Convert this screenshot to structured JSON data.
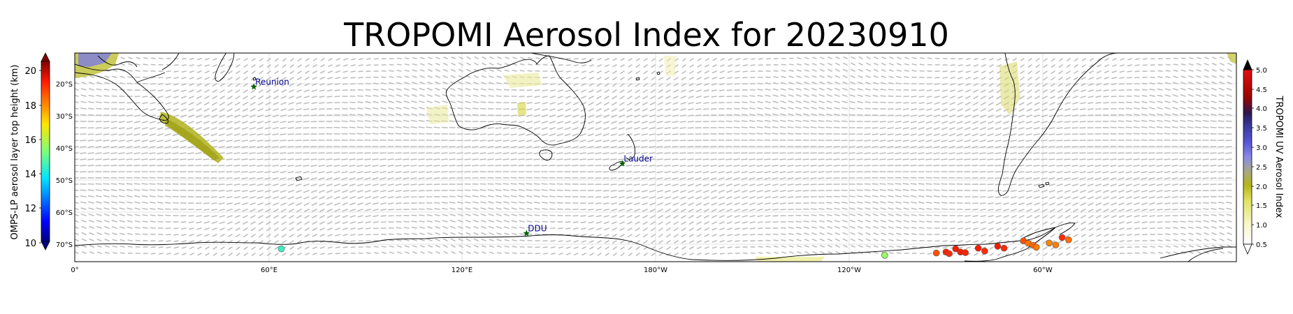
{
  "title": "TROPOMI Aerosol Index for 20230910",
  "left_colorbar": {
    "label": "OMPS-LP aerosol layer top height (km)",
    "ticks": [
      "20",
      "18",
      "16",
      "14",
      "12",
      "10"
    ],
    "range": [
      9.5,
      21
    ],
    "colormap": "jet",
    "extend": "both"
  },
  "right_colorbar": {
    "label": "TROPOMI UV Aerosol Index",
    "ticks": [
      "5.0",
      "4.5",
      "4.0",
      "3.5",
      "3.0",
      "2.5",
      "2.0",
      "1.5",
      "1.0",
      "0.5"
    ],
    "range": [
      0.5,
      5.0
    ],
    "extend": "both"
  },
  "latitude_labels": [
    "20°S",
    "30°S",
    "40°S",
    "50°S",
    "60°S",
    "70°S"
  ],
  "longitude_labels": [
    "0°",
    "60°E",
    "120°E",
    "180°W",
    "120°W",
    "60°W"
  ],
  "stations": [
    {
      "name": "Reunion",
      "lon": 55.5,
      "lat": -21.1
    },
    {
      "name": "Lauder",
      "lon": 169.7,
      "lat": -45.0
    },
    {
      "name": "DDU",
      "lon": 140.0,
      "lat": -66.7
    }
  ],
  "station_color": "#00008b",
  "station_marker_color": "#006400",
  "omps_points": [
    {
      "lon": 64,
      "lat": -71.5,
      "height_km": 14.3
    },
    {
      "lon": 251,
      "lat": -73.5,
      "height_km": 15.6
    },
    {
      "lon": 267,
      "lat": -72.8,
      "height_km": 19.0
    },
    {
      "lon": 270,
      "lat": -72.5,
      "height_km": 19.6
    },
    {
      "lon": 271,
      "lat": -73.0,
      "height_km": 19.5
    },
    {
      "lon": 273,
      "lat": -71.5,
      "height_km": 19.8
    },
    {
      "lon": 274.5,
      "lat": -72.5,
      "height_km": 19.7
    },
    {
      "lon": 276,
      "lat": -72.7,
      "height_km": 19.6
    },
    {
      "lon": 280,
      "lat": -71.3,
      "height_km": 19.7
    },
    {
      "lon": 282,
      "lat": -72.2,
      "height_km": 19.5
    },
    {
      "lon": 286,
      "lat": -70.7,
      "height_km": 19.8
    },
    {
      "lon": 288,
      "lat": -71.3,
      "height_km": 19.5
    },
    {
      "lon": 294,
      "lat": -69.0,
      "height_km": 19.0
    },
    {
      "lon": 295.5,
      "lat": -69.8,
      "height_km": 18.5
    },
    {
      "lon": 297,
      "lat": -70.4,
      "height_km": 18.7
    },
    {
      "lon": 298,
      "lat": -71.0,
      "height_km": 18.4
    },
    {
      "lon": 302,
      "lat": -69.7,
      "height_km": 18.3
    },
    {
      "lon": 304,
      "lat": -70.3,
      "height_km": 18.4
    },
    {
      "lon": 306,
      "lat": -68.0,
      "height_km": 19.5
    },
    {
      "lon": 308,
      "lat": -68.7,
      "height_km": 18.6
    }
  ]
}
